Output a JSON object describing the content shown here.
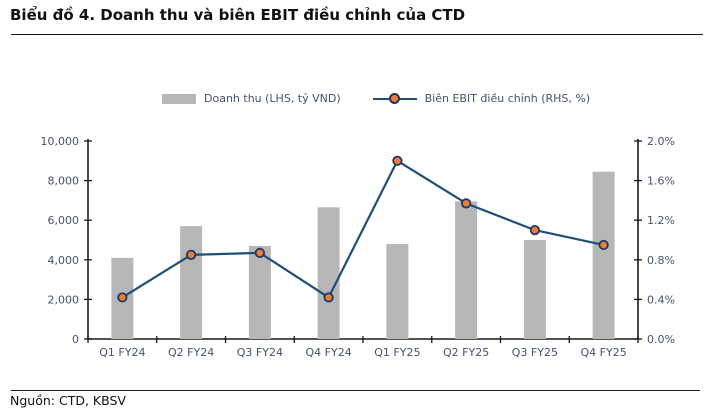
{
  "title": "Biểu đồ 4. Doanh thu và biên EBIT điều chỉnh của CTD",
  "source": "Nguồn: CTD, KBSV",
  "legend": {
    "bar_label": "Doanh thu (LHS, tỷ VND)",
    "line_label": "Biên EBIT điều chỉnh (RHS, %)"
  },
  "colors": {
    "bar": "#b7b7b7",
    "line": "#1f4e79",
    "marker_fill": "#ed7d31",
    "marker_stroke": "#1f3864",
    "axis": "#1a1a1a",
    "tick_text": "#44546a"
  },
  "chart_data": {
    "type": "bar+line combo",
    "title": "Biểu đồ 4. Doanh thu và biên EBIT điều chỉnh của CTD",
    "categories": [
      "Q1 FY24",
      "Q2 FY24",
      "Q3 FY24",
      "Q4 FY24",
      "Q1 FY25",
      "Q2 FY25",
      "Q3 FY25",
      "Q4 FY25"
    ],
    "series": [
      {
        "name": "Doanh thu (LHS, tỷ VND)",
        "type": "bar",
        "axis": "left",
        "values": [
          4100,
          5700,
          4700,
          6650,
          4800,
          6950,
          5000,
          8450
        ]
      },
      {
        "name": "Biên EBIT điều chỉnh (RHS, %)",
        "type": "line",
        "axis": "right",
        "values": [
          0.42,
          0.85,
          0.87,
          0.42,
          1.8,
          1.37,
          1.1,
          0.95
        ]
      }
    ],
    "left_axis": {
      "min": 0,
      "max": 10000,
      "step": 2000,
      "tick_labels": [
        "0",
        "2,000",
        "4,000",
        "6,000",
        "8,000",
        "10,000"
      ]
    },
    "right_axis": {
      "min": 0,
      "max": 2.0,
      "step": 0.4,
      "tick_labels": [
        "0.0%",
        "0.4%",
        "0.8%",
        "1.2%",
        "1.6%",
        "2.0%"
      ]
    },
    "grid": false,
    "legend_position": "top"
  }
}
